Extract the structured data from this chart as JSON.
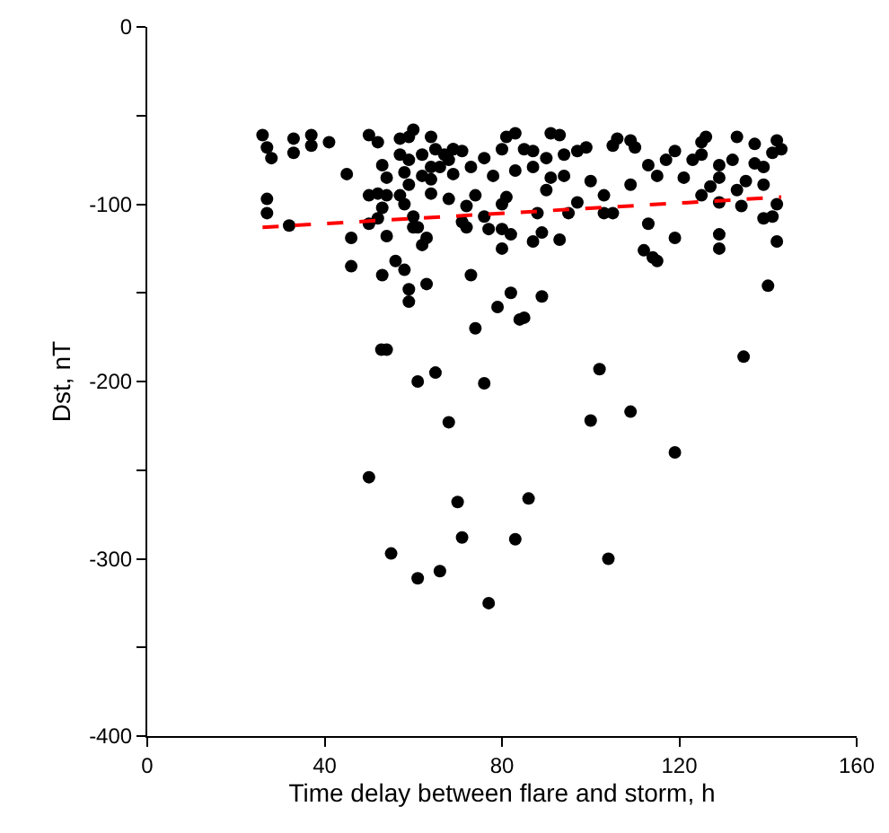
{
  "chart_data": {
    "type": "scatter",
    "xlabel": "Time delay between flare and storm, h",
    "ylabel": "Dst, nT",
    "xlim": [
      0,
      160
    ],
    "xticks": [
      0,
      40,
      80,
      120,
      160
    ],
    "ylim": [
      -400,
      0
    ],
    "yticks": [
      0,
      {
        "value": -50,
        "label": null
      },
      -100,
      {
        "value": -150,
        "label": null
      },
      -200,
      {
        "value": -250,
        "label": null
      },
      -300,
      {
        "value": -350,
        "label": null
      },
      -400
    ],
    "grid": false,
    "marker": "circle",
    "series": [
      {
        "color": "#000000",
        "x": [
          52.8,
          54,
          61,
          65,
          76,
          68,
          50,
          70,
          86,
          71,
          83,
          55,
          61,
          66,
          77,
          100,
          102,
          109,
          119,
          104,
          134.5,
          26,
          27,
          28,
          27,
          27,
          32,
          33,
          33,
          37,
          37,
          41,
          45,
          46,
          46,
          50,
          52,
          53,
          54,
          50,
          52,
          54,
          53,
          52,
          50,
          54,
          56,
          58,
          53,
          59,
          59,
          63,
          57,
          60,
          59,
          57,
          59,
          58,
          59,
          57,
          58,
          60,
          61,
          60,
          63,
          62,
          64,
          65,
          62,
          67,
          69,
          64,
          66,
          68,
          62,
          64,
          69,
          64,
          68,
          69,
          71,
          73,
          76,
          80,
          81,
          83,
          85,
          87,
          78,
          83,
          87,
          90,
          91,
          90,
          91,
          93,
          94,
          94,
          97,
          99,
          100,
          105,
          106,
          109,
          110,
          109,
          113,
          115,
          117,
          119,
          121,
          123,
          125,
          125,
          126,
          129,
          129,
          127,
          132,
          133,
          137,
          137,
          139,
          135,
          139,
          133,
          142,
          143,
          141,
          74,
          72,
          80,
          81,
          71,
          72,
          76,
          77,
          80,
          82,
          80,
          88,
          89,
          87,
          93,
          95,
          97,
          103,
          103,
          105,
          113,
          119,
          112,
          114,
          115,
          125,
          129,
          129,
          129,
          134,
          139,
          141,
          142,
          142,
          140,
          73,
          82,
          89,
          79,
          85,
          84,
          74
        ],
        "values": [
          -182,
          -182,
          -200,
          -195,
          -201,
          -223,
          -254,
          -268,
          -266,
          -288,
          -289,
          -297,
          -311,
          -307,
          -325,
          -222,
          -193,
          -217,
          -240,
          -300,
          -186,
          -61,
          -68,
          -74,
          -97,
          -105,
          -112,
          -63,
          -71,
          -61,
          -67,
          -65,
          -83,
          -119,
          -135,
          -61,
          -65,
          -78,
          -85,
          -95,
          -94,
          -95,
          -102,
          -108,
          -111,
          -118,
          -132,
          -137,
          -140,
          -148,
          -155,
          -145,
          -63,
          -58,
          -62,
          -72,
          -75,
          -82,
          -89,
          -95,
          -100,
          -107,
          -113,
          -113,
          -119,
          -123,
          -62,
          -69,
          -72,
          -72,
          -69,
          -79,
          -79,
          -75,
          -84,
          -86,
          -83,
          -94,
          -97,
          -69,
          -70,
          -79,
          -74,
          -69,
          -62,
          -60,
          -69,
          -70,
          -84,
          -81,
          -79,
          -74,
          -85,
          -92,
          -60,
          -61,
          -72,
          -84,
          -70,
          -68,
          -87,
          -67,
          -63,
          -64,
          -68,
          -89,
          -78,
          -84,
          -75,
          -70,
          -85,
          -75,
          -72,
          -65,
          -62,
          -78,
          -85,
          -90,
          -75,
          -62,
          -66,
          -77,
          -79,
          -87,
          -89,
          -92,
          -64,
          -69,
          -71,
          -95,
          -101,
          -100,
          -96,
          -110,
          -113,
          -107,
          -114,
          -114,
          -117,
          -125,
          -105,
          -116,
          -121,
          -120,
          -105,
          -99,
          -95,
          -105,
          -105,
          -111,
          -119,
          -126,
          -130,
          -132,
          -95,
          -99,
          -117,
          -125,
          -101,
          -108,
          -107,
          -100,
          -121,
          -146,
          -140,
          -150,
          -152,
          -158,
          -164,
          -165,
          -170
        ]
      },
      {
        "type": "line",
        "color": "#ff0000",
        "line_style": "dashed",
        "marker": "none",
        "x": [
          26,
          143
        ],
        "values": [
          -113,
          -96
        ]
      }
    ]
  }
}
